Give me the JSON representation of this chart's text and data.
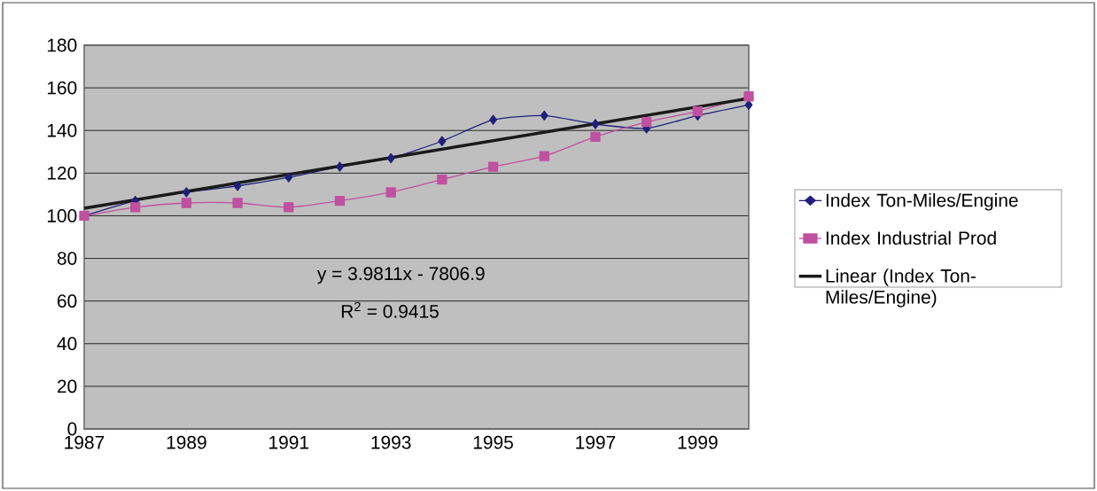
{
  "chart_data": {
    "type": "line",
    "x": [
      1987,
      1988,
      1989,
      1990,
      1991,
      1992,
      1993,
      1994,
      1995,
      1996,
      1997,
      1998,
      1999,
      2000
    ],
    "series": [
      {
        "name": "Index Ton-Miles/Engine",
        "color": "#20207a",
        "marker": "diamond",
        "values": [
          100,
          107,
          111,
          114,
          118,
          123,
          127,
          135,
          145,
          147,
          143,
          141,
          147,
          152
        ]
      },
      {
        "name": "Index Industrial Prod",
        "color": "#c050a0",
        "marker": "square",
        "values": [
          100,
          104,
          106,
          106,
          104,
          107,
          111,
          117,
          123,
          128,
          137,
          144,
          149,
          156
        ]
      },
      {
        "name": "Linear (Index Ton-Miles/Engine)",
        "color": "#1a1a1a",
        "marker": "none",
        "x": [
          1987,
          2000
        ],
        "values": [
          103.5,
          155
        ]
      }
    ],
    "annotations": [
      "y = 3.9811x - 7806.9",
      "R$^{2}$ = 0.9415"
    ],
    "xlim": [
      1987,
      2000
    ],
    "xticks": [
      1987,
      1989,
      1991,
      1993,
      1995,
      1997,
      1999
    ],
    "ylim": [
      0,
      180
    ],
    "yticks": [
      0,
      20,
      40,
      60,
      80,
      100,
      120,
      140,
      160,
      180
    ],
    "grid": "y",
    "legend": "right"
  }
}
